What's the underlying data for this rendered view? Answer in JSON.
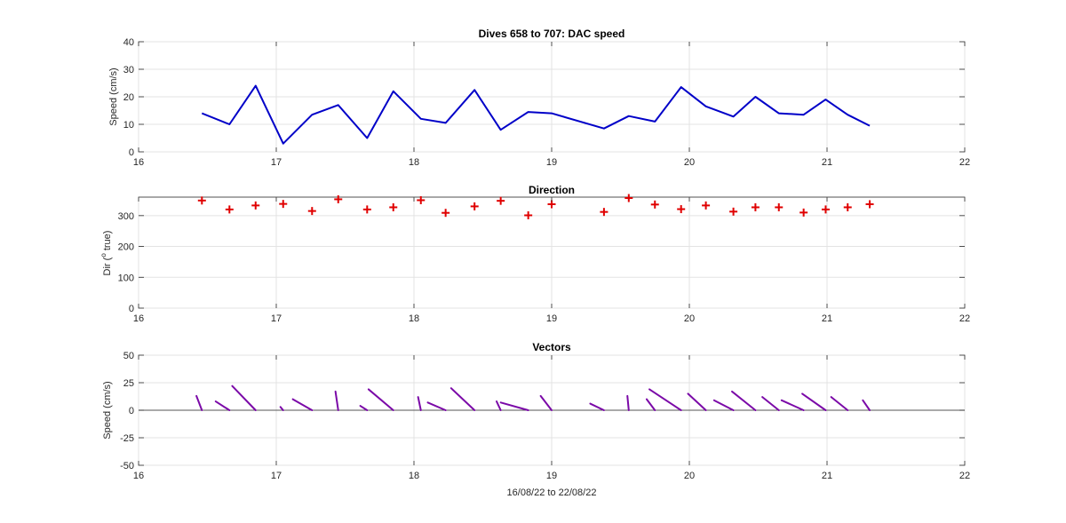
{
  "colors": {
    "speed": "#0000c8",
    "direction": "#e00000",
    "vectors": "#7b0aa8",
    "zero_line": "#555555"
  },
  "chart_data": [
    {
      "type": "line",
      "title": "Dives 658 to 707: DAC speed",
      "xlabel": "",
      "ylabel": "Speed (cm/s)",
      "xlim": [
        16,
        22
      ],
      "ylim": [
        0,
        40
      ],
      "xticks": [
        16,
        17,
        18,
        19,
        20,
        21,
        22
      ],
      "yticks": [
        0,
        10,
        20,
        30,
        40
      ],
      "grid": true,
      "series": [
        {
          "x": [
            16.46,
            16.66,
            16.85,
            17.05,
            17.26,
            17.45,
            17.66,
            17.85,
            18.05,
            18.23,
            18.44,
            18.63,
            18.83,
            19.0,
            19.38,
            19.56,
            19.75,
            19.94,
            20.12,
            20.32,
            20.48,
            20.65,
            20.83,
            20.99,
            21.15,
            21.31
          ],
          "values": [
            14,
            10,
            24,
            3,
            13.5,
            17,
            5,
            22,
            12,
            10.5,
            22.5,
            8,
            14.5,
            14,
            8.5,
            13,
            11,
            23.5,
            16.5,
            12.8,
            20,
            14,
            13.5,
            19,
            13.5,
            9.5
          ]
        }
      ]
    },
    {
      "type": "scatter",
      "title": "Direction",
      "xlabel": "",
      "ylabel_prefix": "Dir (",
      "ylabel_sup": "o",
      "ylabel_suffix": " true)",
      "xlim": [
        16,
        22
      ],
      "ylim": [
        0,
        360
      ],
      "xticks": [
        16,
        17,
        18,
        19,
        20,
        21,
        22
      ],
      "yticks": [
        0,
        100,
        200,
        300
      ],
      "grid": true,
      "marker": "+",
      "series": [
        {
          "x": [
            16.46,
            16.66,
            16.85,
            17.05,
            17.26,
            17.45,
            17.66,
            17.85,
            18.05,
            18.23,
            18.44,
            18.63,
            18.83,
            19.0,
            19.38,
            19.56,
            19.75,
            19.94,
            20.12,
            20.32,
            20.48,
            20.65,
            20.83,
            20.99,
            21.15,
            21.31
          ],
          "values": [
            349,
            320,
            333,
            338,
            315,
            353,
            320,
            327,
            350,
            309,
            330,
            348,
            301,
            337,
            312,
            357,
            336,
            321,
            333,
            313,
            327,
            327,
            310,
            320,
            327,
            337
          ]
        }
      ]
    },
    {
      "type": "vector",
      "title": "Vectors",
      "xlabel": "16/08/22 to 22/08/22",
      "ylabel": "Speed (cm/s)",
      "xlim": [
        16,
        22
      ],
      "ylim": [
        -50,
        50
      ],
      "xticks": [
        16,
        17,
        18,
        19,
        20,
        21,
        22
      ],
      "yticks": [
        -50,
        -25,
        0,
        25,
        50
      ],
      "grid": true,
      "vectors": [
        {
          "x": 16.46,
          "dx": -0.04,
          "dy": 13
        },
        {
          "x": 16.66,
          "dx": -0.1,
          "dy": 8
        },
        {
          "x": 16.85,
          "dx": -0.17,
          "dy": 22
        },
        {
          "x": 17.05,
          "dx": -0.02,
          "dy": 3
        },
        {
          "x": 17.26,
          "dx": -0.14,
          "dy": 10
        },
        {
          "x": 17.45,
          "dx": -0.02,
          "dy": 17
        },
        {
          "x": 17.66,
          "dx": -0.05,
          "dy": 4
        },
        {
          "x": 17.85,
          "dx": -0.18,
          "dy": 19
        },
        {
          "x": 18.05,
          "dx": -0.02,
          "dy": 12
        },
        {
          "x": 18.23,
          "dx": -0.13,
          "dy": 7
        },
        {
          "x": 18.44,
          "dx": -0.17,
          "dy": 20
        },
        {
          "x": 18.63,
          "dx": -0.03,
          "dy": 8
        },
        {
          "x": 18.83,
          "dx": -0.2,
          "dy": 7
        },
        {
          "x": 19.0,
          "dx": -0.08,
          "dy": 13
        },
        {
          "x": 19.38,
          "dx": -0.1,
          "dy": 6
        },
        {
          "x": 19.56,
          "dx": -0.01,
          "dy": 13
        },
        {
          "x": 19.75,
          "dx": -0.06,
          "dy": 10
        },
        {
          "x": 19.94,
          "dx": -0.23,
          "dy": 19
        },
        {
          "x": 20.12,
          "dx": -0.13,
          "dy": 15
        },
        {
          "x": 20.32,
          "dx": -0.14,
          "dy": 9
        },
        {
          "x": 20.48,
          "dx": -0.17,
          "dy": 17
        },
        {
          "x": 20.65,
          "dx": -0.12,
          "dy": 12
        },
        {
          "x": 20.83,
          "dx": -0.16,
          "dy": 9
        },
        {
          "x": 20.99,
          "dx": -0.17,
          "dy": 15
        },
        {
          "x": 21.15,
          "dx": -0.12,
          "dy": 12
        },
        {
          "x": 21.31,
          "dx": -0.05,
          "dy": 9
        }
      ]
    }
  ]
}
